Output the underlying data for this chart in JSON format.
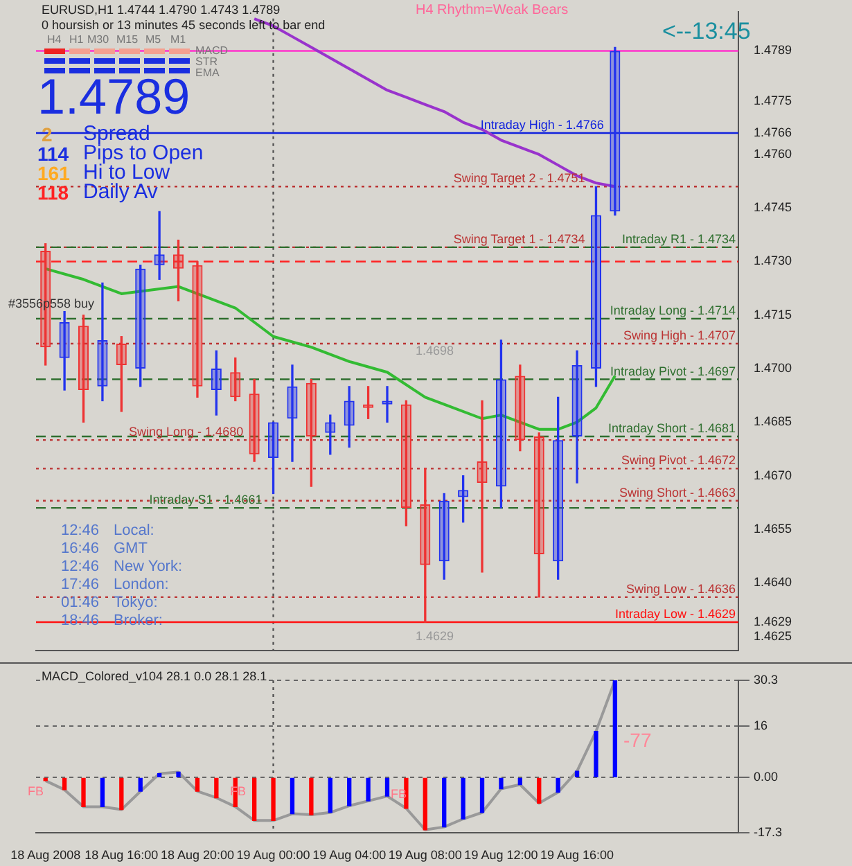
{
  "chart_data": [
    {
      "type": "candlestick",
      "title": "EURUSD,H1 1.4744 1.4790 1.4743 1.4789",
      "subtitle": "0 hoursish or 13 minutes 45 seconds left to bar end",
      "categories": [
        "18 Aug 2008",
        null,
        null,
        null,
        "18 Aug 16:00",
        null,
        null,
        null,
        "18 Aug 20:00",
        null,
        null,
        null,
        "19 Aug 00:00",
        null,
        null,
        null,
        "19 Aug 04:00",
        null,
        null,
        null,
        "19 Aug 08:00",
        null,
        null,
        null,
        "19 Aug 12:00",
        null,
        null,
        null,
        "19 Aug 16:00",
        null,
        null,
        null,
        null,
        null,
        null,
        null,
        null
      ],
      "ohlc": [
        [
          1.4733,
          1.4735,
          1.4701,
          1.4706
        ],
        [
          1.4703,
          1.4716,
          1.4694,
          1.4713
        ],
        [
          1.4712,
          1.4715,
          1.4685,
          1.4694
        ],
        [
          1.4695,
          1.4724,
          1.4691,
          1.4708
        ],
        [
          1.4707,
          1.4709,
          1.4688,
          1.4701
        ],
        [
          1.47,
          1.4729,
          1.4695,
          1.4728
        ],
        [
          1.4729,
          1.4744,
          1.4725,
          1.4732
        ],
        [
          1.4732,
          1.4736,
          1.4719,
          1.4728
        ],
        [
          1.4729,
          1.473,
          1.4692,
          1.4695
        ],
        [
          1.4694,
          1.4705,
          1.4687,
          1.47
        ],
        [
          1.4699,
          1.4703,
          1.4691,
          1.4692
        ],
        [
          1.4693,
          1.4697,
          1.4674,
          1.4676
        ],
        [
          1.4675,
          1.4685,
          1.4665,
          1.4685
        ],
        [
          1.4686,
          1.4701,
          1.4674,
          1.4695
        ],
        [
          1.4696,
          1.4697,
          1.4667,
          1.4681
        ],
        [
          1.4682,
          1.4687,
          1.4676,
          1.4685
        ],
        [
          1.4684,
          1.4695,
          1.4678,
          1.4691
        ],
        [
          1.469,
          1.4695,
          1.4686,
          1.4689
        ],
        [
          1.469,
          1.4695,
          1.4685,
          1.4691
        ],
        [
          1.469,
          1.4691,
          1.4656,
          1.4661
        ],
        [
          1.4662,
          1.4672,
          1.4629,
          1.4645
        ],
        [
          1.4646,
          1.4665,
          1.4641,
          1.4663
        ],
        [
          1.4664,
          1.467,
          1.4657,
          1.4666
        ],
        [
          1.4674,
          1.4691,
          1.4643,
          1.4668
        ],
        [
          1.4667,
          1.4708,
          1.4661,
          1.4697
        ],
        [
          1.4698,
          1.4701,
          1.4677,
          1.468
        ],
        [
          1.4681,
          1.4682,
          1.4636,
          1.4648
        ],
        [
          1.4646,
          1.4692,
          1.4641,
          1.468
        ],
        [
          1.4681,
          1.4705,
          1.4668,
          1.4701
        ],
        [
          1.47,
          1.4751,
          1.4695,
          1.4743
        ],
        [
          1.4744,
          1.479,
          1.4743,
          1.4789
        ],
        null,
        null,
        null,
        null,
        null,
        null
      ],
      "colors": [
        "#ee3333",
        "#2233ee",
        "#ee3333",
        "#2233ee",
        "#ee3333",
        "#2233ee",
        "#2233ee",
        "#ee3333",
        "#ee3333",
        "#2233ee",
        "#ee3333",
        "#ee3333",
        "#2233ee",
        "#2233ee",
        "#ee3333",
        "#2233ee",
        "#2233ee",
        "#ee3333",
        "#2233ee",
        "#ee3333",
        "#ee3333",
        "#2233ee",
        "#2233ee",
        "#ee3333",
        "#2233ee",
        "#ee3333",
        "#ee3333",
        "#2233ee",
        "#2233ee",
        "#2233ee",
        "#2233ee",
        "#2233ee",
        "#2233ee",
        "#2233ee",
        "#2233ee",
        "#2233ee",
        "#2233ee"
      ],
      "series": [
        {
          "type": "line",
          "color": "#9933cc",
          "values": [
            null,
            null,
            null,
            null,
            null,
            null,
            null,
            null,
            null,
            null,
            null,
            1.4798,
            1.4796,
            1.4793,
            1.479,
            1.4787,
            1.4784,
            1.4781,
            1.4778,
            1.4776,
            1.4774,
            1.4772,
            1.4769,
            1.4767,
            1.4764,
            1.4762,
            1.476,
            1.4757,
            1.4754,
            1.4752,
            1.4751,
            null,
            null,
            null,
            null,
            null,
            null
          ]
        },
        {
          "type": "line",
          "color": "#33bb33",
          "values": [
            1.4728,
            null,
            1.4725,
            null,
            1.4721,
            null,
            null,
            1.4723,
            null,
            null,
            1.4717,
            null,
            1.4709,
            null,
            1.4706,
            null,
            1.4702,
            null,
            1.4699,
            null,
            1.4692,
            1.469,
            null,
            1.4686,
            1.4687,
            null,
            1.4683,
            1.4683,
            1.4685,
            1.4689,
            1.4698,
            null,
            null,
            null,
            null,
            null,
            null
          ]
        }
      ],
      "ylim": [
        1.4621,
        1.48
      ],
      "yticks": [
        1.4625,
        1.4629,
        {
          "value": 1.464,
          "label": "1.4640"
        },
        1.4655,
        {
          "value": 1.467,
          "label": "1.4670"
        },
        1.4685,
        {
          "value": 1.47,
          "label": "1.4700"
        },
        1.4715,
        {
          "value": 1.473,
          "label": "1.4730"
        },
        1.4745,
        {
          "value": 1.476,
          "label": "1.4760"
        },
        1.4766,
        1.4775,
        1.4789
      ],
      "tick_labels": "y",
      "ref_lines": [
        {
          "axis": "x",
          "value": "19 Aug 00:00",
          "label": null,
          "color": "#555555",
          "line_style": "dotted"
        },
        {
          "axis": "y",
          "value": 1.4789,
          "label": null,
          "color": "#ff33cc",
          "line_style": "solid"
        },
        {
          "axis": "y",
          "value": 1.4766,
          "label": "Intraday High - 1.4766",
          "color": "#1122dd",
          "line_style": "solid"
        },
        {
          "axis": "y",
          "value": 1.4751,
          "label": "Swing Target 2 - 1.4751",
          "color": "#bb3333",
          "line_style": "dotted"
        },
        {
          "axis": "y",
          "value": 1.4734,
          "label": "Swing Target 1 - 1.4734",
          "color": "#bb3333",
          "line_style": "dotted"
        },
        {
          "axis": "y",
          "value": 1.4734,
          "label": "Intraday R1 - 1.4734",
          "color": "#2f6f2f",
          "line_style": "dashed"
        },
        {
          "axis": "y",
          "value": 1.473,
          "label": null,
          "color": "#ff2222",
          "line_style": "dashed"
        },
        {
          "axis": "y",
          "value": 1.4714,
          "label": "Intraday Long - 1.4714",
          "color": "#2f6f2f",
          "line_style": "dashed"
        },
        {
          "axis": "y",
          "value": 1.4707,
          "label": "Swing High - 1.4707",
          "color": "#bb3333",
          "line_style": "dotted"
        },
        {
          "axis": "y",
          "value": 1.4697,
          "label": "Intraday Pivot - 1.4697",
          "color": "#2f6f2f",
          "line_style": "dashed"
        },
        {
          "axis": "y",
          "value": 1.4681,
          "label": "Intraday Short - 1.4681",
          "color": "#2f6f2f",
          "line_style": "dashed"
        },
        {
          "axis": "y",
          "value": 1.468,
          "label": "Swing Long - 1.4680",
          "color": "#bb3333",
          "line_style": "dotted"
        },
        {
          "axis": "y",
          "value": 1.4672,
          "label": "Swing Pivot - 1.4672",
          "color": "#bb3333",
          "line_style": "dotted"
        },
        {
          "axis": "y",
          "value": 1.4663,
          "label": "Swing Short - 1.4663",
          "color": "#bb3333",
          "line_style": "dotted"
        },
        {
          "axis": "y",
          "value": 1.4661,
          "label": "Intraday S1 - 1.4661",
          "color": "#2f6f2f",
          "line_style": "dashed"
        },
        {
          "axis": "y",
          "value": 1.4636,
          "label": "Swing Low - 1.4636",
          "color": "#bb3333",
          "line_style": "dotted"
        },
        {
          "axis": "y",
          "value": 1.4629,
          "label": "Intraday Low - 1.4629",
          "color": "#ff1111",
          "line_style": "solid"
        }
      ],
      "annotations": [
        "H4 Rhythm=Weak Bears",
        "<--13:45",
        "H4",
        "H1",
        "M30",
        "M15",
        "M5",
        "M1",
        "MACD",
        "STR",
        "EMA",
        "1.4789",
        "2",
        "Spread",
        "114",
        "Pips to Open",
        "161",
        "Hi to Low",
        "118",
        "Daily Av",
        "#3556p558 buy",
        "12:46",
        "Local:",
        "16:46",
        "GMT",
        "12:46",
        "New York:",
        "17:46",
        "London:",
        "01:46",
        "Tokyo:",
        "18:46",
        "Broker:",
        "1.4698",
        "1.4629"
      ]
    },
    {
      "type": "bar",
      "title": "MACD_Colored_v104 28.1 0.0 28.1 28.1",
      "categories": [
        "18 Aug 2008",
        null,
        null,
        null,
        "18 Aug 16:00",
        null,
        null,
        null,
        "18 Aug 20:00",
        null,
        null,
        null,
        "19 Aug 00:00",
        null,
        null,
        null,
        "19 Aug 04:00",
        null,
        null,
        null,
        "19 Aug 08:00",
        null,
        null,
        null,
        "19 Aug 12:00",
        null,
        null,
        null,
        "19 Aug 16:00",
        null,
        null,
        null,
        null,
        null,
        null,
        null,
        null
      ],
      "series": [
        {
          "type": "bar",
          "values": [
            -1,
            -3.8,
            -9.1,
            -9.1,
            -10,
            -4.3,
            1.2,
            1.7,
            -4.3,
            -6.3,
            -9.1,
            -13.4,
            -13.4,
            -11.3,
            -11.6,
            -10.9,
            -8.8,
            -7.3,
            -5.8,
            -9.6,
            -16.3,
            -15.4,
            -12.9,
            -10.9,
            -3.5,
            -2.2,
            -8,
            -4.6,
            2,
            14.4,
            30.3,
            null,
            null,
            null,
            null,
            null,
            null
          ],
          "colors": [
            "#ff0000",
            "#ff0000",
            "#ff0000",
            "#0000ff",
            "#ff0000",
            "#0000ff",
            "#0000ff",
            "#0000ff",
            "#ff0000",
            "#ff0000",
            "#ff0000",
            "#ff0000",
            "#ff0000",
            "#0000ff",
            "#ff0000",
            "#0000ff",
            "#0000ff",
            "#0000ff",
            "#0000ff",
            "#ff0000",
            "#ff0000",
            "#0000ff",
            "#0000ff",
            "#0000ff",
            "#0000ff",
            "#0000ff",
            "#ff0000",
            "#0000ff",
            "#0000ff",
            "#0000ff",
            "#0000ff",
            "#0000ff",
            "#0000ff",
            "#0000ff",
            "#0000ff",
            "#0000ff",
            "#0000ff"
          ]
        },
        {
          "type": "line",
          "color": "#999999",
          "values": [
            -1,
            -3.8,
            -9.1,
            -9.1,
            -10,
            -4.3,
            1.2,
            1.7,
            -4.3,
            -6.3,
            -9.1,
            -13.4,
            -13.4,
            -11.3,
            -11.6,
            -10.9,
            -8.8,
            -7.3,
            -5.8,
            -9.6,
            -16.3,
            -15.4,
            -12.9,
            -10.9,
            -3.5,
            -2.2,
            -8,
            -4.6,
            2,
            14.4,
            30.3,
            null,
            null,
            null,
            null,
            null,
            null
          ]
        }
      ],
      "ylim": [
        -17.3,
        30.3
      ],
      "yticks": [
        -17.3,
        {
          "value": 0,
          "label": "0.00"
        },
        16,
        30.3
      ],
      "grid": "y",
      "ref_lines": [
        {
          "axis": "x",
          "value": "19 Aug 00:00",
          "label": null,
          "color": "#555555",
          "line_style": "dotted"
        }
      ],
      "annotations": [
        "FB",
        "FB",
        "FB",
        "-77"
      ]
    }
  ]
}
